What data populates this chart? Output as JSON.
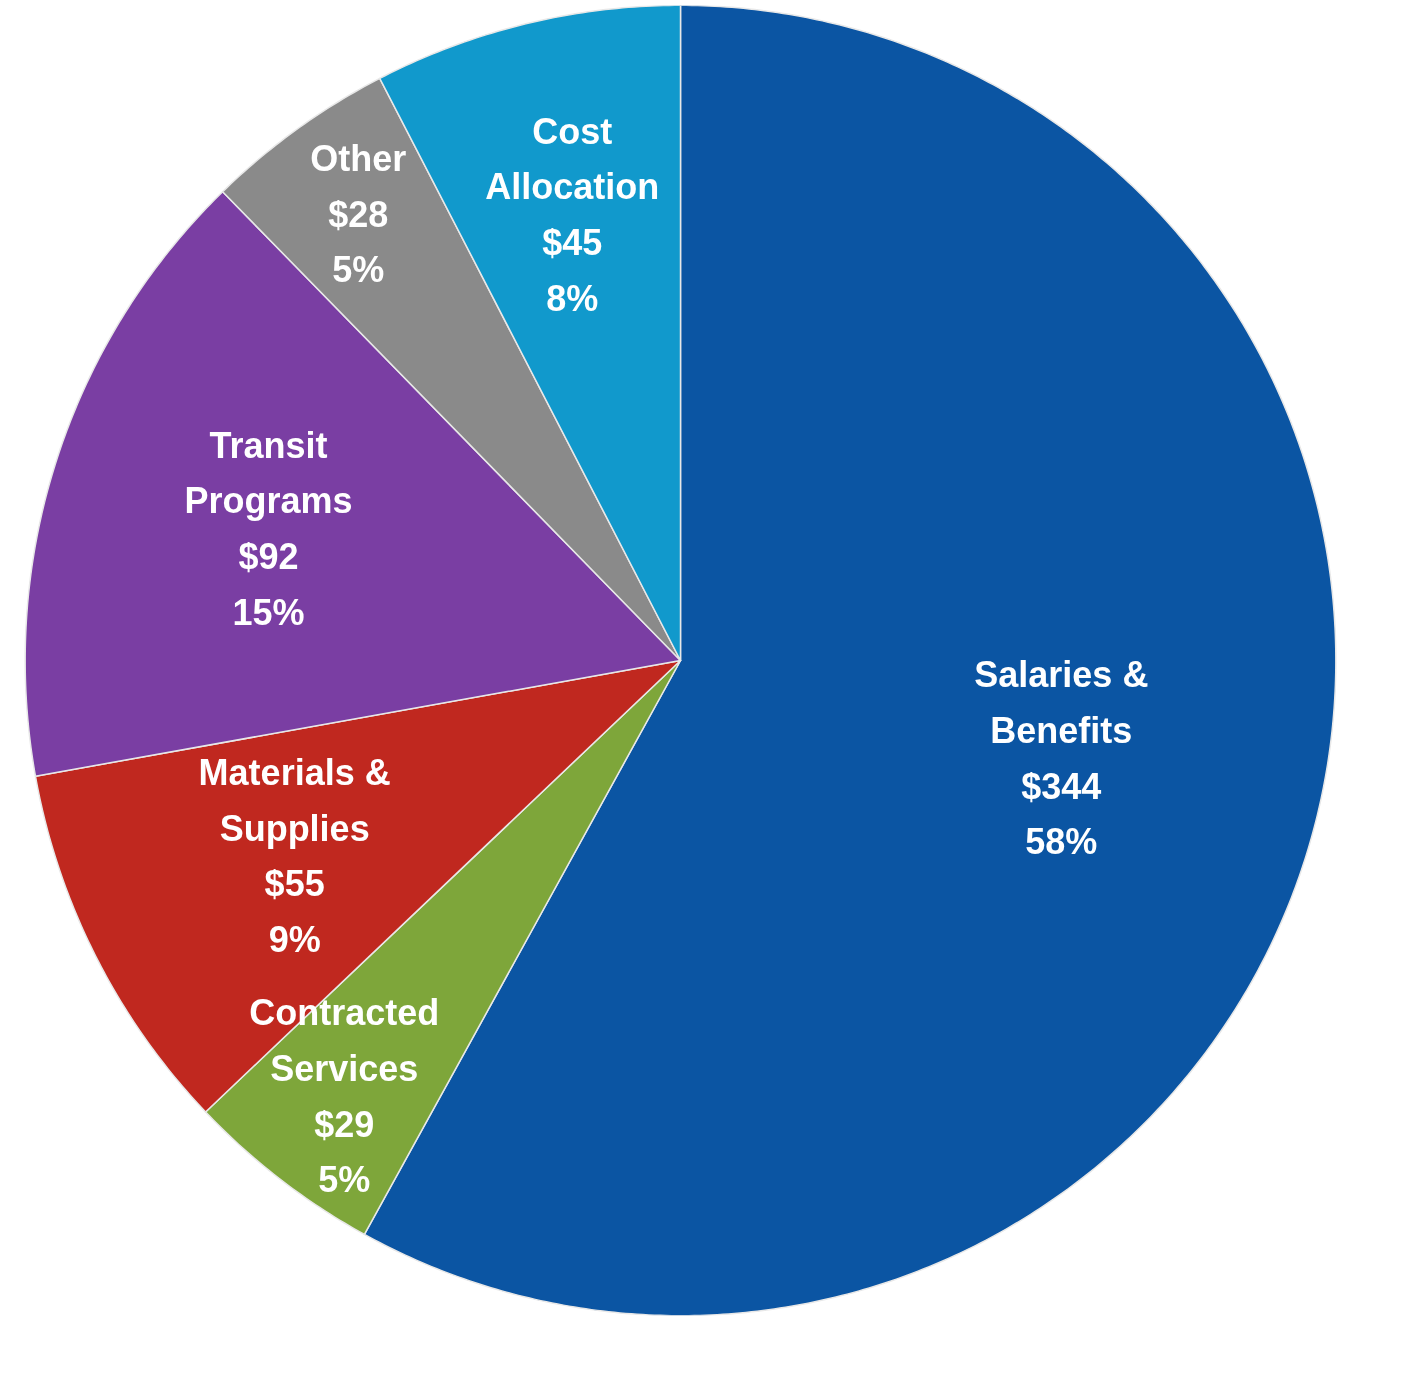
{
  "chart_data": {
    "type": "pie",
    "categories": [
      "Salaries & Benefits",
      "Contracted Services",
      "Materials & Supplies",
      "Transit Programs",
      "Other",
      "Cost Allocation"
    ],
    "values": [
      344,
      29,
      55,
      92,
      28,
      45
    ],
    "colors": [
      "#0b55a3",
      "#7ea63a",
      "#c0281f",
      "#7a3ea3",
      "#8a8a8a",
      "#1199cc"
    ],
    "value_labels": [
      "$344\n58%",
      "$29\n5%",
      "$55\n9%",
      "$92\n15%",
      "$28\n5%",
      "$45\n8%"
    ],
    "legend": false
  }
}
